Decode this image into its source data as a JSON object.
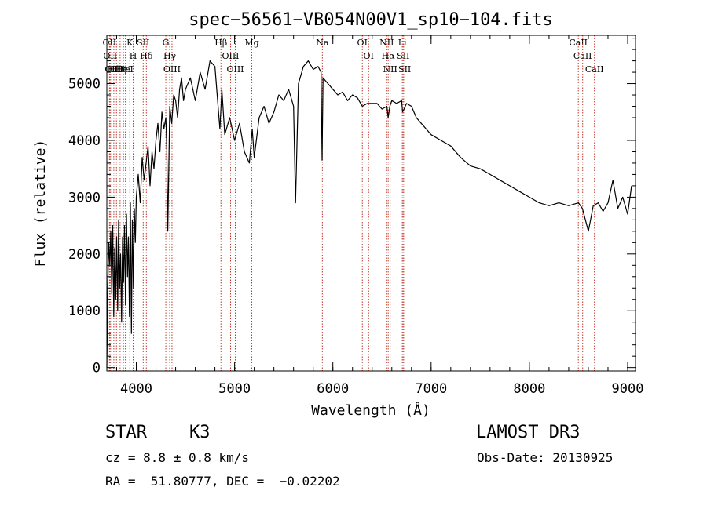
{
  "chart_data": {
    "type": "line",
    "title": "spec−56561−VB054N00V1_sp10−104.fits",
    "xlabel": "Wavelength (Å)",
    "ylabel": "Flux (relative)",
    "xlim": [
      3700,
      9080
    ],
    "ylim": [
      -60,
      5850
    ],
    "xticks": [
      4000,
      5000,
      6000,
      7000,
      8000,
      9000
    ],
    "yticks": [
      0,
      1000,
      2000,
      3000,
      4000,
      5000
    ],
    "grid": false,
    "series": [
      {
        "x": [
          3700,
          3710,
          3720,
          3730,
          3740,
          3750,
          3760,
          3770,
          3780,
          3790,
          3800,
          3810,
          3820,
          3830,
          3840,
          3850,
          3860,
          3870,
          3880,
          3890,
          3900,
          3910,
          3920,
          3930,
          3940,
          3950,
          3960,
          3970,
          3980,
          3990,
          4000,
          4020,
          4040,
          4060,
          4080,
          4100,
          4120,
          4140,
          4160,
          4180,
          4200,
          4220,
          4240,
          4260,
          4280,
          4300,
          4310,
          4320,
          4340,
          4360,
          4380,
          4400,
          4420,
          4440,
          4460,
          4480,
          4500,
          4550,
          4600,
          4650,
          4700,
          4750,
          4800,
          4850,
          4870,
          4900,
          4950,
          5000,
          5050,
          5100,
          5150,
          5180,
          5200,
          5250,
          5300,
          5350,
          5400,
          5450,
          5500,
          5550,
          5600,
          5620,
          5650,
          5700,
          5750,
          5800,
          5850,
          5880,
          5890,
          5900,
          5950,
          6000,
          6050,
          6100,
          6150,
          6200,
          6250,
          6300,
          6350,
          6400,
          6450,
          6500,
          6550,
          6563,
          6580,
          6600,
          6650,
          6700,
          6710,
          6750,
          6800,
          6850,
          6900,
          6950,
          7000,
          7100,
          7200,
          7300,
          7400,
          7500,
          7600,
          7700,
          7800,
          7900,
          8000,
          8100,
          8200,
          8300,
          8400,
          8500,
          8540,
          8600,
          8650,
          8700,
          8750,
          8800,
          8850,
          8900,
          8950,
          9000,
          9040
        ],
        "y": [
          0,
          1500,
          2200,
          1800,
          2400,
          1300,
          2500,
          900,
          2100,
          1200,
          2300,
          1000,
          2600,
          1400,
          2000,
          800,
          2300,
          1500,
          2500,
          1100,
          2700,
          1600,
          2300,
          900,
          2900,
          600,
          2600,
          1400,
          2800,
          2200,
          3000,
          3400,
          2900,
          3700,
          3300,
          3600,
          3900,
          3200,
          3800,
          3500,
          4000,
          4300,
          3800,
          4500,
          4200,
          4400,
          3900,
          2400,
          4600,
          4300,
          4800,
          4700,
          4400,
          4900,
          5100,
          4700,
          4900,
          5100,
          4700,
          5200,
          4900,
          5400,
          5300,
          4200,
          4900,
          4100,
          4400,
          4000,
          4300,
          3800,
          3600,
          4200,
          3700,
          4400,
          4600,
          4300,
          4500,
          4800,
          4700,
          4900,
          4600,
          2900,
          5000,
          5300,
          5400,
          5250,
          5300,
          5200,
          3650,
          5100,
          5000,
          4900,
          4800,
          4850,
          4700,
          4800,
          4750,
          4600,
          4650,
          4650,
          4650,
          4550,
          4600,
          4400,
          4600,
          4700,
          4650,
          4700,
          4500,
          4650,
          4600,
          4400,
          4300,
          4200,
          4100,
          4000,
          3900,
          3700,
          3550,
          3500,
          3400,
          3300,
          3200,
          3100,
          3000,
          2900,
          2850,
          2900,
          2850,
          2900,
          2800,
          2400,
          2850,
          2900,
          2750,
          2900,
          3300,
          2800,
          3000,
          2700,
          3200
        ],
        "color": "#000000"
      }
    ],
    "lines": [
      {
        "x": 3727,
        "label": "OII"
      },
      {
        "x": 3734,
        "label": "OII"
      },
      {
        "x": 3750,
        "label": "OII"
      },
      {
        "x": 3771,
        "label": "Hθ"
      },
      {
        "x": 3798,
        "label": "Hθ"
      },
      {
        "x": 3835,
        "label": "Hη"
      },
      {
        "x": 3869,
        "label": "HeI"
      },
      {
        "x": 3889,
        "label": "HeI"
      },
      {
        "x": 3934,
        "label": "K"
      },
      {
        "x": 3968,
        "label": "H"
      },
      {
        "x": 4070,
        "label": "SII"
      },
      {
        "x": 4102,
        "label": "Hδ"
      },
      {
        "x": 4300,
        "label": "G"
      },
      {
        "x": 4340,
        "label": "Hγ"
      },
      {
        "x": 4363,
        "label": "OIII"
      },
      {
        "x": 4861,
        "label": "Hβ"
      },
      {
        "x": 4959,
        "label": "OIII"
      },
      {
        "x": 5007,
        "label": "OIII"
      },
      {
        "x": 5175,
        "label": "Mg"
      },
      {
        "x": 5893,
        "label": "Na"
      },
      {
        "x": 6300,
        "label": "OI"
      },
      {
        "x": 6364,
        "label": "OI"
      },
      {
        "x": 6548,
        "label": "NII"
      },
      {
        "x": 6563,
        "label": "Hα"
      },
      {
        "x": 6583,
        "label": "NII"
      },
      {
        "x": 6707,
        "label": "Li"
      },
      {
        "x": 6716,
        "label": "SII"
      },
      {
        "x": 6731,
        "label": "SII"
      },
      {
        "x": 8498,
        "label": "CaII"
      },
      {
        "x": 8542,
        "label": "CaII"
      },
      {
        "x": 8662,
        "label": "CaII"
      }
    ]
  },
  "footer": {
    "object_class": "STAR",
    "subclass": "K3",
    "survey": "LAMOST DR3",
    "cz": "cz = 8.8 ± 0.8 km/s",
    "obs_date": "Obs-Date: 20130925",
    "coords": "RA =  51.80777, DEC =  −0.02202"
  }
}
